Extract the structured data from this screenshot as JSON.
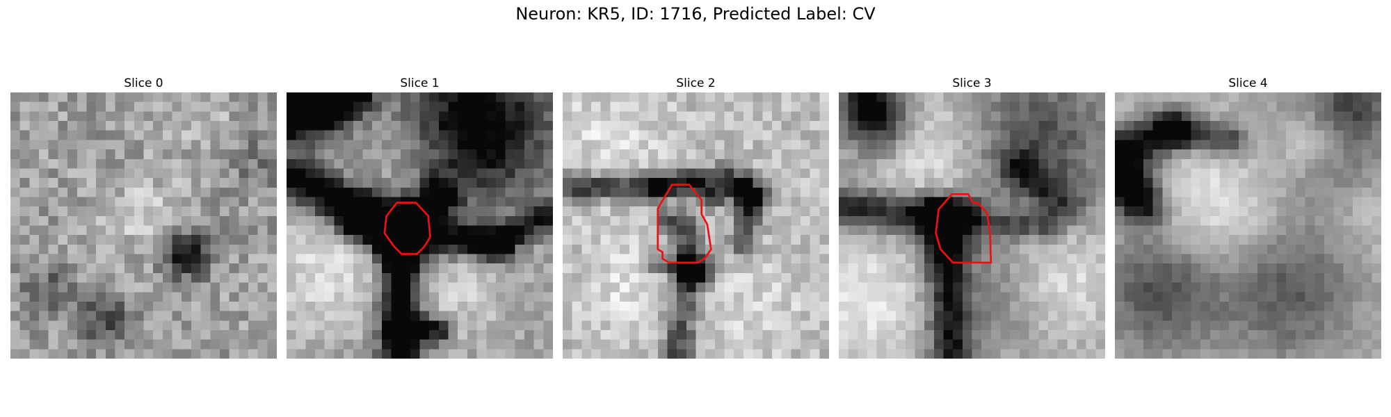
{
  "figure": {
    "title": "Neuron: KR5, ID: 1716, Predicted Label: CV",
    "contour_color": "#ee1111",
    "colormap": "gray",
    "grid_size": 28
  },
  "slices": [
    {
      "title": "Slice 0",
      "has_contour": false
    },
    {
      "title": "Slice 1",
      "has_contour": true
    },
    {
      "title": "Slice 2",
      "has_contour": true
    },
    {
      "title": "Slice 3",
      "has_contour": true
    },
    {
      "title": "Slice 4",
      "has_contour": false
    }
  ]
}
